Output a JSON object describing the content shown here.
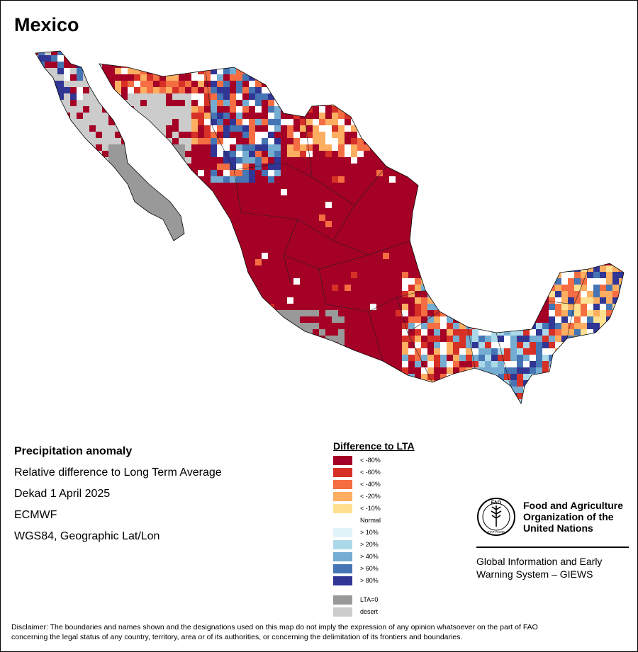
{
  "map_title": "Mexico",
  "info": {
    "heading": "Precipitation anomaly",
    "description": "Relative difference to Long Term Average",
    "period": "Dekad 1 April 2025",
    "source": "ECMWF",
    "projection": "WGS84, Geographic Lat/Lon"
  },
  "legend": {
    "title": "Difference to LTA",
    "items": [
      {
        "label": "< -80%",
        "color": "#a50026"
      },
      {
        "label": "< -60%",
        "color": "#d73027"
      },
      {
        "label": "< -40%",
        "color": "#f46d43"
      },
      {
        "label": "< -20%",
        "color": "#fdae61"
      },
      {
        "label": "< -10%",
        "color": "#fee090"
      },
      {
        "label": "Normal",
        "color": "#ffffff"
      },
      {
        "label": "> 10%",
        "color": "#e0f3f8"
      },
      {
        "label": "> 20%",
        "color": "#abd9e9"
      },
      {
        "label": "> 40%",
        "color": "#74add1"
      },
      {
        "label": "> 60%",
        "color": "#4575b4"
      },
      {
        "label": "> 80%",
        "color": "#313695"
      }
    ],
    "extra": [
      {
        "label": "LTA=0",
        "color": "#999999"
      },
      {
        "label": "desert",
        "color": "#cccccc"
      }
    ]
  },
  "organization": {
    "logo_text": "FAO",
    "logo_ring_text": "FIAT PANIS",
    "name_line1": "Food and Agriculture",
    "name_line2": "Organization of the",
    "name_line3": "United Nations",
    "system_line1": "Global Information and Early",
    "system_line2": "Warning System – GIEWS"
  },
  "disclaimer_line1": "Disclaimer: The boundaries and names shown and the designations used on this map do not imply the expression of any opinion whatsoever on the part of FAO",
  "disclaimer_line2": "concerning the legal status of any country, territory, area or of its authorities, or concerning the delimitation of its frontiers and boundaries."
}
